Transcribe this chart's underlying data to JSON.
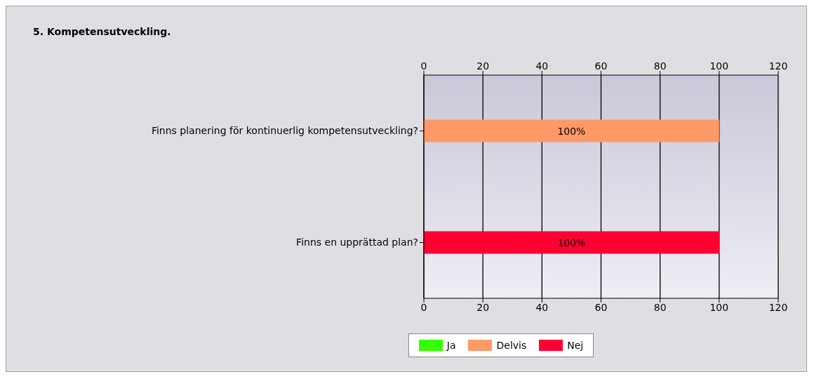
{
  "chart_data": {
    "type": "bar",
    "orientation": "horizontal",
    "stacked": true,
    "title": "5. Kompetensutveckling.",
    "categories": [
      "Finns planering för kontinuerlig kompetensutveckling?",
      "Finns en upprättad plan?"
    ],
    "series": [
      {
        "name": "Ja",
        "color": "#33ff00",
        "values": [
          0,
          0
        ],
        "value_labels": [
          null,
          null
        ]
      },
      {
        "name": "Delvis",
        "color": "#ff9966",
        "values": [
          100,
          0
        ],
        "value_labels": [
          "100%",
          null
        ]
      },
      {
        "name": "Nej",
        "color": "#ff0033",
        "values": [
          0,
          100
        ],
        "value_labels": [
          null,
          "100%"
        ]
      }
    ],
    "xlim": [
      0,
      120
    ],
    "xticks": [
      0,
      20,
      40,
      60,
      80,
      100,
      120
    ],
    "x2lim": [
      0,
      120
    ],
    "x2ticks": [
      0,
      20,
      40,
      60,
      80,
      100,
      120
    ],
    "grid": "x",
    "legend": "bottom"
  }
}
